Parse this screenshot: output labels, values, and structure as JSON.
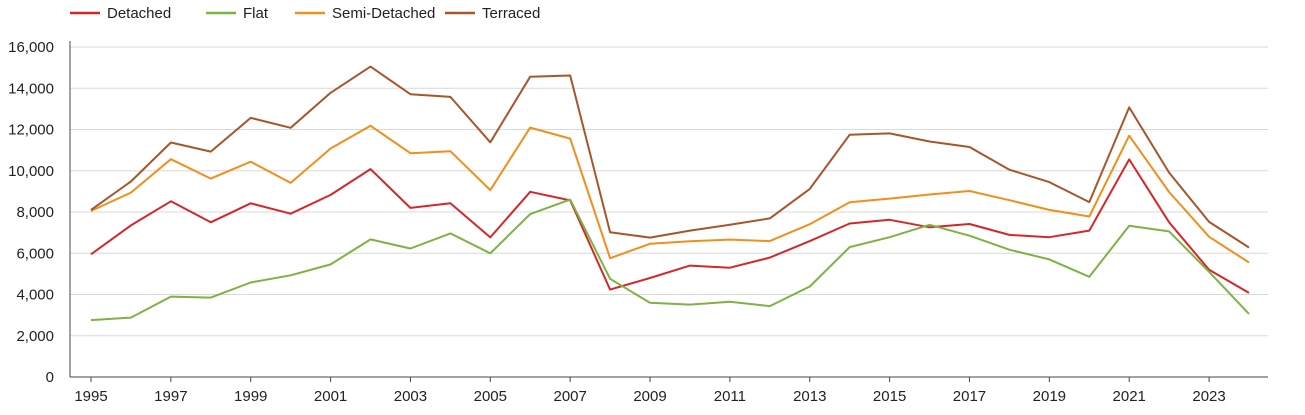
{
  "chart_data": {
    "type": "line",
    "title": "",
    "xlabel": "",
    "ylabel": "",
    "x": [
      1995,
      1996,
      1997,
      1998,
      1999,
      2000,
      2001,
      2002,
      2003,
      2004,
      2005,
      2006,
      2007,
      2008,
      2009,
      2010,
      2011,
      2012,
      2013,
      2014,
      2015,
      2016,
      2017,
      2018,
      2019,
      2020,
      2021,
      2022,
      2023,
      2024
    ],
    "xticks": [
      "1995",
      "1997",
      "1999",
      "2001",
      "2003",
      "2005",
      "2007",
      "2009",
      "2011",
      "2013",
      "2015",
      "2017",
      "2019",
      "2021",
      "2023"
    ],
    "xtick_values": [
      1995,
      1997,
      1999,
      2001,
      2003,
      2005,
      2007,
      2009,
      2011,
      2013,
      2015,
      2017,
      2019,
      2021,
      2023
    ],
    "yticks": [
      "0",
      "2,000",
      "4,000",
      "6,000",
      "8,000",
      "10,000",
      "12,000",
      "14,000",
      "16,000"
    ],
    "ytick_values": [
      0,
      2000,
      4000,
      6000,
      8000,
      10000,
      12000,
      14000,
      16000
    ],
    "xlim": [
      1995,
      2024
    ],
    "ylim": [
      0,
      16000
    ],
    "grid": "horizontal",
    "legend_position": "top-left",
    "series": [
      {
        "name": "Detached",
        "color": "#d62728",
        "values": [
          5950,
          7350,
          8520,
          7500,
          8420,
          7920,
          8830,
          10080,
          8200,
          8420,
          6770,
          8980,
          8560,
          4240,
          4800,
          5400,
          5300,
          5790,
          6590,
          7440,
          7620,
          7260,
          7420,
          6890,
          6780,
          7100,
          10550,
          7500,
          5200,
          4080
        ]
      },
      {
        "name": "Flat",
        "color": "#7cb342",
        "values": [
          2760,
          2880,
          3900,
          3850,
          4580,
          4930,
          5460,
          6670,
          6230,
          6960,
          6000,
          7900,
          8600,
          4760,
          3600,
          3510,
          3650,
          3440,
          4390,
          6300,
          6780,
          7380,
          6850,
          6170,
          5700,
          4860,
          7330,
          7060,
          5100,
          3060
        ]
      },
      {
        "name": "Semi-Detached",
        "color": "#f28e1c",
        "values": [
          8050,
          8940,
          10560,
          9620,
          10440,
          9410,
          11080,
          12180,
          10850,
          10950,
          9060,
          12090,
          11560,
          5760,
          6460,
          6580,
          6660,
          6590,
          7410,
          8470,
          8650,
          8850,
          9020,
          8570,
          8100,
          7780,
          11700,
          8970,
          6800,
          5550
        ]
      },
      {
        "name": "Terraced",
        "color": "#a8552a",
        "values": [
          8100,
          9480,
          11370,
          10930,
          12560,
          12080,
          13780,
          15050,
          13710,
          13580,
          11380,
          14560,
          14620,
          7020,
          6760,
          7100,
          7380,
          7690,
          9120,
          11750,
          11810,
          11420,
          11150,
          10050,
          9450,
          8480,
          13070,
          9910,
          7520,
          6280
        ]
      }
    ]
  }
}
